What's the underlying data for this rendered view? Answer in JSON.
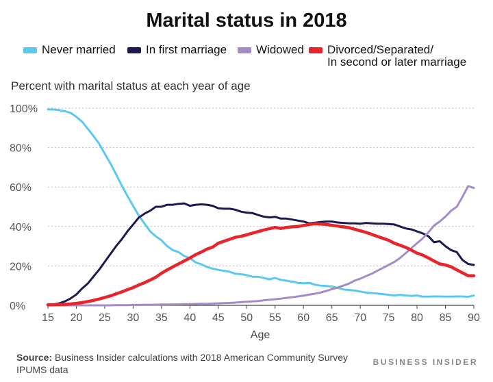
{
  "title": "Marital status in 2018",
  "subtitle": "Percent with marital status at each year of age",
  "source_label": "Source:",
  "source_text": "Business Insider calculations with 2018 American Community Survey IPUMS data",
  "brand": "BUSINESS INSIDER",
  "legend": [
    {
      "label": "Never married",
      "color": "#5bc8f2"
    },
    {
      "label": "In first marriage",
      "color": "#1b1a4e"
    },
    {
      "label": "Widowed",
      "color": "#a48cc8"
    },
    {
      "label": "Divorced/Separated/\nIn second or later marriage",
      "color": "#e8252b"
    }
  ],
  "chart_data": {
    "type": "line",
    "title": "Marital status in 2018",
    "xlabel": "Age",
    "ylabel": "Percent with marital status at each year of age",
    "xlim": [
      15,
      90
    ],
    "ylim": [
      0,
      100
    ],
    "x_ticks": [
      15,
      20,
      25,
      30,
      35,
      40,
      45,
      50,
      55,
      60,
      65,
      70,
      75,
      80,
      85,
      90
    ],
    "y_ticks": [
      0,
      20,
      40,
      60,
      80,
      100
    ],
    "y_tick_labels": [
      "0%",
      "20%",
      "40%",
      "60%",
      "80%",
      "100%"
    ],
    "grid": true,
    "legend_position": "top",
    "x": [
      15,
      16,
      17,
      18,
      19,
      20,
      21,
      22,
      23,
      24,
      25,
      26,
      27,
      28,
      29,
      30,
      31,
      32,
      33,
      34,
      35,
      36,
      37,
      38,
      39,
      40,
      41,
      42,
      43,
      44,
      45,
      46,
      47,
      48,
      49,
      50,
      51,
      52,
      53,
      54,
      55,
      56,
      57,
      58,
      59,
      60,
      61,
      62,
      63,
      64,
      65,
      66,
      67,
      68,
      69,
      70,
      71,
      72,
      73,
      74,
      75,
      76,
      77,
      78,
      79,
      80,
      81,
      82,
      83,
      84,
      85,
      86,
      87,
      88,
      89,
      90
    ],
    "series": [
      {
        "name": "Never married",
        "color": "#5bc8f2",
        "values": [
          99.4,
          99.3,
          99.0,
          98.4,
          97.6,
          95.6,
          93.2,
          89.6,
          86.0,
          82.0,
          77.0,
          72.0,
          66.5,
          60.8,
          55.5,
          50.5,
          45.5,
          41.5,
          37.5,
          35.0,
          33.0,
          30.0,
          28.0,
          27.0,
          25.0,
          24.0,
          21.8,
          20.8,
          19.5,
          18.6,
          18.0,
          17.5,
          17.0,
          16.0,
          15.8,
          15.3,
          14.5,
          14.5,
          13.9,
          13.2,
          13.9,
          12.9,
          12.5,
          12.0,
          11.4,
          11.2,
          11.4,
          10.5,
          10.0,
          9.8,
          9.5,
          8.9,
          8.1,
          7.8,
          7.5,
          7.0,
          6.5,
          6.2,
          6.0,
          5.7,
          5.3,
          5.0,
          5.3,
          5.0,
          4.8,
          5.0,
          4.4,
          4.4,
          4.5,
          4.5,
          4.4,
          4.4,
          4.5,
          4.5,
          4.3,
          5.0
        ]
      },
      {
        "name": "In first marriage",
        "color": "#1b1a4e",
        "values": [
          0.3,
          0.5,
          1.0,
          2.0,
          3.5,
          5.5,
          8.5,
          11.0,
          14.5,
          18.0,
          22.0,
          26.0,
          30.0,
          33.5,
          37.5,
          41.0,
          44.5,
          46.5,
          48.0,
          50.0,
          50.0,
          51.0,
          51.0,
          51.5,
          51.7,
          50.5,
          51.0,
          51.2,
          51.0,
          50.5,
          49.2,
          49.0,
          49.0,
          48.5,
          47.5,
          47.0,
          46.8,
          45.8,
          45.0,
          44.6,
          44.9,
          44.0,
          44.0,
          43.5,
          43.0,
          42.5,
          41.6,
          41.9,
          42.3,
          42.5,
          42.5,
          42.0,
          41.8,
          41.6,
          41.6,
          41.4,
          41.8,
          41.6,
          41.4,
          41.4,
          41.2,
          41.0,
          40.0,
          39.0,
          38.5,
          37.5,
          36.5,
          35.0,
          32.0,
          32.5,
          30.0,
          28.0,
          27.0,
          23.0,
          21.0,
          20.5
        ]
      },
      {
        "name": "Widowed",
        "color": "#a48cc8",
        "values": [
          0,
          0,
          0,
          0,
          0,
          0,
          0,
          0,
          0,
          0,
          0,
          0,
          0.1,
          0.1,
          0.1,
          0.2,
          0.2,
          0.3,
          0.3,
          0.3,
          0.4,
          0.4,
          0.5,
          0.5,
          0.6,
          0.6,
          0.7,
          0.8,
          0.8,
          0.9,
          1.0,
          1.1,
          1.2,
          1.4,
          1.6,
          1.8,
          2.0,
          2.2,
          2.5,
          2.8,
          3.1,
          3.4,
          3.8,
          4.1,
          4.5,
          4.9,
          5.4,
          5.9,
          6.5,
          7.3,
          8.2,
          9.0,
          10.0,
          11.0,
          12.5,
          13.5,
          14.8,
          16.0,
          17.5,
          19.0,
          20.5,
          22.0,
          24.0,
          26.5,
          29.0,
          31.5,
          34.0,
          37.0,
          40.5,
          42.5,
          45.0,
          48.0,
          50.0,
          55.0,
          60.5,
          59.5
        ]
      },
      {
        "name": "Divorced/Separated/In second or later marriage",
        "color": "#e8252b",
        "values": [
          0.3,
          0.3,
          0.4,
          0.5,
          0.7,
          1.0,
          1.4,
          1.9,
          2.5,
          3.2,
          4.0,
          4.8,
          5.8,
          6.8,
          7.9,
          9.0,
          10.3,
          11.5,
          12.8,
          14.3,
          16.3,
          18.0,
          19.5,
          21.0,
          22.5,
          24.0,
          25.7,
          27.0,
          28.5,
          29.5,
          31.5,
          32.5,
          33.5,
          34.5,
          35.0,
          35.8,
          36.6,
          37.4,
          38.2,
          38.9,
          39.5,
          39.0,
          39.5,
          39.8,
          40.0,
          40.5,
          41.0,
          41.4,
          41.2,
          41.0,
          40.6,
          40.2,
          39.8,
          39.4,
          38.6,
          37.8,
          37.0,
          36.0,
          35.0,
          34.0,
          33.0,
          31.5,
          30.5,
          29.4,
          28.0,
          26.5,
          25.5,
          24.0,
          22.5,
          21.0,
          20.5,
          19.5,
          18.0,
          16.5,
          15.0,
          15.0
        ]
      }
    ]
  }
}
